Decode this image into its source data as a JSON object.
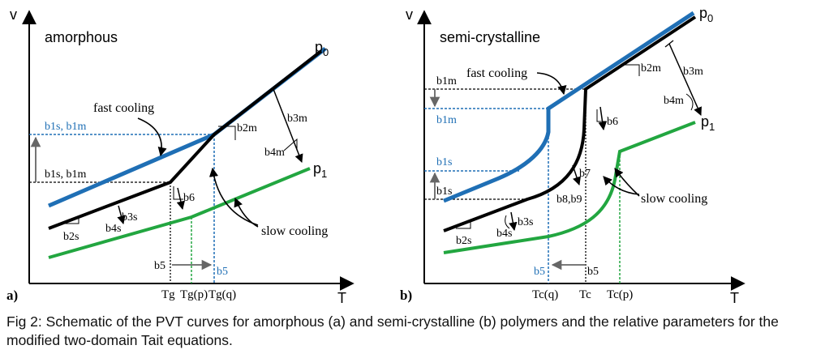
{
  "panels": [
    {
      "letter": "a)",
      "title": "amorphous",
      "axis": {
        "y": "v",
        "x": "T"
      },
      "pressure_labels": {
        "top": "p",
        "top_sub": "0",
        "bottom": "p",
        "bottom_sub": "1"
      },
      "curve_labels": {
        "fast": "fast cooling",
        "slow": "slow cooling"
      },
      "params": {
        "b1_blue": "b1s, b1m",
        "b1_black": "b1s, b1m",
        "b2m": "b2m",
        "b2s": "b2s",
        "b3m": "b3m",
        "b4m": "b4m",
        "b3s": "b3s",
        "b4s": "b4s",
        "b6": "b6",
        "b5_black": "b5",
        "b5_blue": "b5"
      },
      "x_ticks": {
        "t1": "Tg",
        "t2": "Tg(p)",
        "t3": "Tg(q)"
      }
    },
    {
      "letter": "b)",
      "title": "semi-crystalline",
      "axis": {
        "y": "v",
        "x": "T"
      },
      "pressure_labels": {
        "top": "p",
        "top_sub": "0",
        "bottom": "p",
        "bottom_sub": "1"
      },
      "curve_labels": {
        "fast": "fast cooling",
        "slow": "slow cooling"
      },
      "params": {
        "b1m_black": "b1m",
        "b1m_blue": "b1m",
        "b1s_blue": "b1s",
        "b1s_black": "b1s",
        "b2m": "b2m",
        "b3m": "b3m",
        "b4m": "b4m",
        "b6": "b6",
        "b7": "b7",
        "b89": "b8,b9",
        "b3s": "b3s",
        "b4s": "b4s",
        "b2s": "b2s",
        "b5_blue": "b5",
        "b5_black": "b5"
      },
      "x_ticks": {
        "t1": "Tc(q)",
        "t2": "Tc",
        "t3": "Tc(p)"
      }
    }
  ],
  "colors": {
    "blue": "#1f6fb5",
    "green": "#22a640",
    "black": "#000000"
  },
  "caption": "Fig 2: Schematic of the PVT curves for amorphous (a) and semi-crystalline (b) polymers and the relative parameters for the modified two-domain Tait equations."
}
